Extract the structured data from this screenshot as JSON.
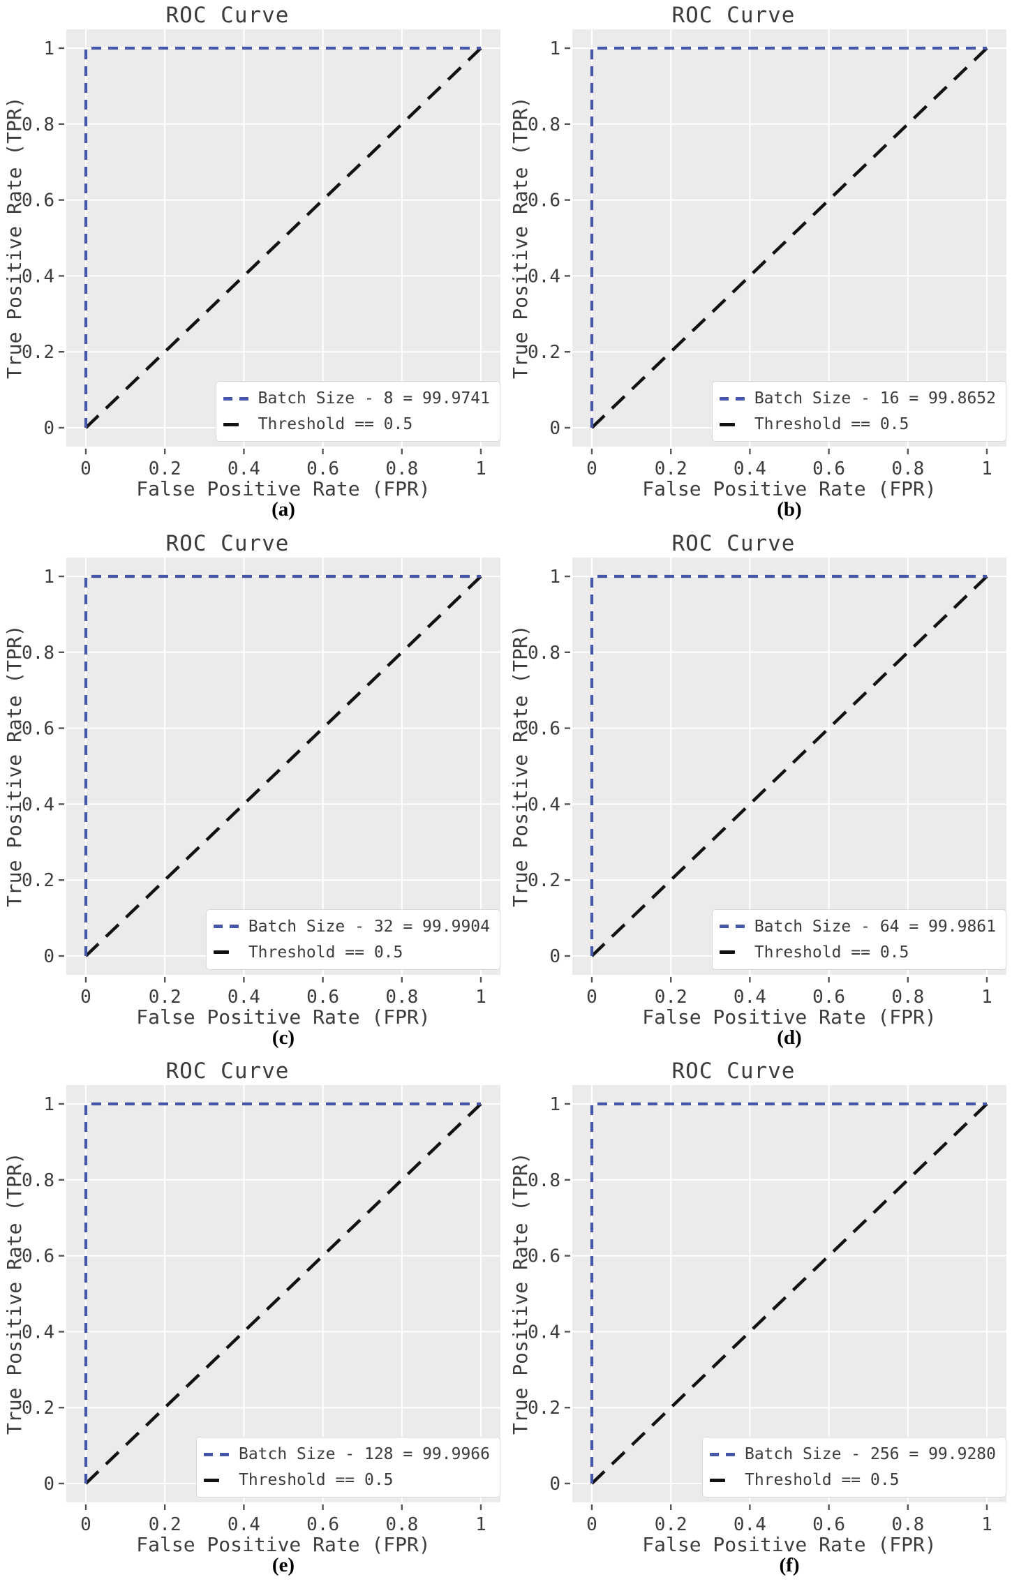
{
  "figure": {
    "description": "Grid of six ROC curve plots comparing batch sizes",
    "rows": 3,
    "cols": 2
  },
  "style": {
    "figure_bg": "#ffffff",
    "plot_bg": "#ebebeb",
    "grid_color": "#ffffff",
    "tick_color": "#555555",
    "text_color": "#3c3c3c",
    "roc_blue": "#4656a8",
    "threshold_black": "#111111",
    "legend_bg": "#ffffff",
    "legend_border": "#d8d8d8"
  },
  "chart_data": [
    {
      "type": "line",
      "title": "ROC Curve",
      "xlabel": "False Positive Rate (FPR)",
      "ylabel": "True Positive Rate (TPR)",
      "caption": "(a)",
      "batch_size": 8,
      "auc_percent": 99.9741,
      "xlim": [
        0,
        1
      ],
      "ylim": [
        0,
        1
      ],
      "grid": true,
      "legend_position": "lower right",
      "x_ticks": [
        0,
        0.2,
        0.4,
        0.6,
        0.8,
        1
      ],
      "y_ticks": [
        0,
        0.2,
        0.4,
        0.6,
        0.8,
        1
      ],
      "x_tick_labels": [
        "0",
        "0.2",
        "0.4",
        "0.6",
        "0.8",
        "1"
      ],
      "y_tick_labels": [
        "0",
        "0.2",
        "0.4",
        "0.6",
        "0.8",
        "1"
      ],
      "series": [
        {
          "name": "Batch Size - 8 = 99.9741",
          "x": [
            0,
            0,
            1
          ],
          "y": [
            0,
            1,
            1
          ],
          "color": "#4656a8",
          "dash": "14 10",
          "width": 4.2,
          "line_style": "dashed"
        },
        {
          "name": "Threshold == 0.5",
          "x": [
            0,
            1
          ],
          "y": [
            0,
            1
          ],
          "color": "#111111",
          "dash": "25 15",
          "width": 4.5,
          "line_style": "dashed"
        }
      ]
    },
    {
      "type": "line",
      "title": "ROC Curve",
      "xlabel": "False Positive Rate (FPR)",
      "ylabel": "True Positive Rate (TPR)",
      "caption": "(b)",
      "batch_size": 16,
      "auc_percent": 99.8652,
      "xlim": [
        0,
        1
      ],
      "ylim": [
        0,
        1
      ],
      "grid": true,
      "legend_position": "lower right",
      "x_ticks": [
        0,
        0.2,
        0.4,
        0.6,
        0.8,
        1
      ],
      "y_ticks": [
        0,
        0.2,
        0.4,
        0.6,
        0.8,
        1
      ],
      "x_tick_labels": [
        "0",
        "0.2",
        "0.4",
        "0.6",
        "0.8",
        "1"
      ],
      "y_tick_labels": [
        "0",
        "0.2",
        "0.4",
        "0.6",
        "0.8",
        "1"
      ],
      "series": [
        {
          "name": "Batch Size - 16 = 99.8652",
          "x": [
            0,
            0,
            1
          ],
          "y": [
            0,
            1,
            1
          ],
          "color": "#4656a8",
          "dash": "14 10",
          "width": 4.2,
          "line_style": "dashed"
        },
        {
          "name": "Threshold == 0.5",
          "x": [
            0,
            1
          ],
          "y": [
            0,
            1
          ],
          "color": "#111111",
          "dash": "25 15",
          "width": 4.5,
          "line_style": "dashed"
        }
      ]
    },
    {
      "type": "line",
      "title": "ROC Curve",
      "xlabel": "False Positive Rate (FPR)",
      "ylabel": "True Positive Rate (TPR)",
      "caption": "(c)",
      "batch_size": 32,
      "auc_percent": 99.9904,
      "xlim": [
        0,
        1
      ],
      "ylim": [
        0,
        1
      ],
      "grid": true,
      "legend_position": "lower right",
      "x_ticks": [
        0,
        0.2,
        0.4,
        0.6,
        0.8,
        1
      ],
      "y_ticks": [
        0,
        0.2,
        0.4,
        0.6,
        0.8,
        1
      ],
      "x_tick_labels": [
        "0",
        "0.2",
        "0.4",
        "0.6",
        "0.8",
        "1"
      ],
      "y_tick_labels": [
        "0",
        "0.2",
        "0.4",
        "0.6",
        "0.8",
        "1"
      ],
      "series": [
        {
          "name": "Batch Size - 32 = 99.9904",
          "x": [
            0,
            0,
            1
          ],
          "y": [
            0,
            1,
            1
          ],
          "color": "#4656a8",
          "dash": "14 10",
          "width": 4.2,
          "line_style": "dashed"
        },
        {
          "name": "Threshold == 0.5",
          "x": [
            0,
            1
          ],
          "y": [
            0,
            1
          ],
          "color": "#111111",
          "dash": "25 15",
          "width": 4.5,
          "line_style": "dashed"
        }
      ]
    },
    {
      "type": "line",
      "title": "ROC Curve",
      "xlabel": "False Positive Rate (FPR)",
      "ylabel": "True Positive Rate (TPR)",
      "caption": "(d)",
      "batch_size": 64,
      "auc_percent": 99.9861,
      "xlim": [
        0,
        1
      ],
      "ylim": [
        0,
        1
      ],
      "grid": true,
      "legend_position": "lower right",
      "x_ticks": [
        0,
        0.2,
        0.4,
        0.6,
        0.8,
        1
      ],
      "y_ticks": [
        0,
        0.2,
        0.4,
        0.6,
        0.8,
        1
      ],
      "x_tick_labels": [
        "0",
        "0.2",
        "0.4",
        "0.6",
        "0.8",
        "1"
      ],
      "y_tick_labels": [
        "0",
        "0.2",
        "0.4",
        "0.6",
        "0.8",
        "1"
      ],
      "series": [
        {
          "name": "Batch Size - 64 = 99.9861",
          "x": [
            0,
            0,
            1
          ],
          "y": [
            0,
            1,
            1
          ],
          "color": "#4656a8",
          "dash": "14 10",
          "width": 4.2,
          "line_style": "dashed"
        },
        {
          "name": "Threshold == 0.5",
          "x": [
            0,
            1
          ],
          "y": [
            0,
            1
          ],
          "color": "#111111",
          "dash": "25 15",
          "width": 4.5,
          "line_style": "dashed"
        }
      ]
    },
    {
      "type": "line",
      "title": "ROC Curve",
      "xlabel": "False Positive Rate (FPR)",
      "ylabel": "True Positive Rate (TPR)",
      "caption": "(e)",
      "batch_size": 128,
      "auc_percent": 99.9966,
      "xlim": [
        0,
        1
      ],
      "ylim": [
        0,
        1
      ],
      "grid": true,
      "legend_position": "lower right",
      "x_ticks": [
        0,
        0.2,
        0.4,
        0.6,
        0.8,
        1
      ],
      "y_ticks": [
        0,
        0.2,
        0.4,
        0.6,
        0.8,
        1
      ],
      "x_tick_labels": [
        "0",
        "0.2",
        "0.4",
        "0.6",
        "0.8",
        "1"
      ],
      "y_tick_labels": [
        "0",
        "0.2",
        "0.4",
        "0.6",
        "0.8",
        "1"
      ],
      "series": [
        {
          "name": "Batch Size - 128 = 99.9966",
          "x": [
            0,
            0,
            1
          ],
          "y": [
            0,
            1,
            1
          ],
          "color": "#4656a8",
          "dash": "14 10",
          "width": 4.2,
          "line_style": "dashed"
        },
        {
          "name": "Threshold == 0.5",
          "x": [
            0,
            1
          ],
          "y": [
            0,
            1
          ],
          "color": "#111111",
          "dash": "25 15",
          "width": 4.5,
          "line_style": "dashed"
        }
      ]
    },
    {
      "type": "line",
      "title": "ROC Curve",
      "xlabel": "False Positive Rate (FPR)",
      "ylabel": "True Positive Rate (TPR)",
      "caption": "(f)",
      "batch_size": 256,
      "auc_percent": 99.928,
      "xlim": [
        0,
        1
      ],
      "ylim": [
        0,
        1
      ],
      "grid": true,
      "legend_position": "lower right",
      "x_ticks": [
        0,
        0.2,
        0.4,
        0.6,
        0.8,
        1
      ],
      "y_ticks": [
        0,
        0.2,
        0.4,
        0.6,
        0.8,
        1
      ],
      "x_tick_labels": [
        "0",
        "0.2",
        "0.4",
        "0.6",
        "0.8",
        "1"
      ],
      "y_tick_labels": [
        "0",
        "0.2",
        "0.4",
        "0.6",
        "0.8",
        "1"
      ],
      "series": [
        {
          "name": "Batch Size - 256 = 99.9280",
          "x": [
            0,
            0,
            1
          ],
          "y": [
            0,
            1,
            1
          ],
          "color": "#4656a8",
          "dash": "14 10",
          "width": 4.2,
          "line_style": "dashed"
        },
        {
          "name": "Threshold == 0.5",
          "x": [
            0,
            1
          ],
          "y": [
            0,
            1
          ],
          "color": "#111111",
          "dash": "25 15",
          "width": 4.5,
          "line_style": "dashed"
        }
      ]
    }
  ]
}
